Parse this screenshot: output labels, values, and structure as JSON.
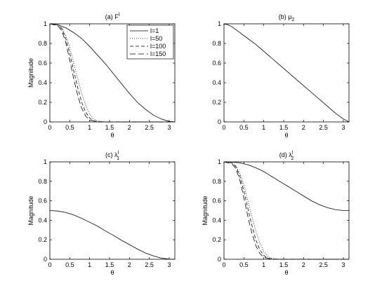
{
  "chart_data": [
    {
      "type": "line",
      "title": "(a) F",
      "title_sup": "l",
      "xlabel": "θ",
      "ylabel": "Magnitude",
      "xlim": [
        0,
        3.1416
      ],
      "ylim": [
        0,
        1
      ],
      "xticks": [
        0,
        0.5,
        1,
        1.5,
        2,
        2.5,
        3
      ],
      "xtick_labels": [
        "0",
        "0.5",
        "1",
        "1.5",
        "2",
        "2.5",
        "3"
      ],
      "yticks": [
        0,
        0.2,
        0.4,
        0.6,
        0.8,
        1
      ],
      "ytick_labels": [
        "0",
        "0.2",
        "0.4",
        "0.6",
        "0.8",
        "1"
      ],
      "legend": "top-right",
      "series": [
        {
          "name": "l=1",
          "style": "solid",
          "x": [
            0,
            0.2,
            0.4,
            0.6,
            0.8,
            1.0,
            1.2,
            1.4,
            1.6,
            1.8,
            2.0,
            2.2,
            2.4,
            2.6,
            2.8,
            3.0,
            3.1416
          ],
          "y": [
            1,
            0.99,
            0.96,
            0.91,
            0.85,
            0.77,
            0.68,
            0.59,
            0.49,
            0.39,
            0.29,
            0.2,
            0.13,
            0.07,
            0.03,
            0.005,
            0
          ]
        },
        {
          "name": "l=50",
          "style": "dotted",
          "x": [
            0,
            0.2,
            0.3,
            0.4,
            0.5,
            0.6,
            0.7,
            0.8,
            0.9,
            1.0,
            1.1,
            1.2,
            1.4,
            3.1416
          ],
          "y": [
            1,
            0.99,
            0.96,
            0.88,
            0.76,
            0.6,
            0.44,
            0.29,
            0.17,
            0.08,
            0.03,
            0.01,
            0,
            0
          ]
        },
        {
          "name": "l=100",
          "style": "dashed",
          "x": [
            0,
            0.2,
            0.3,
            0.4,
            0.5,
            0.6,
            0.7,
            0.8,
            0.9,
            1.0,
            1.1,
            1.3,
            3.1416
          ],
          "y": [
            1,
            0.99,
            0.95,
            0.85,
            0.7,
            0.52,
            0.35,
            0.2,
            0.1,
            0.04,
            0.01,
            0,
            0
          ]
        },
        {
          "name": "l=150",
          "style": "longdash",
          "x": [
            0,
            0.2,
            0.3,
            0.4,
            0.5,
            0.6,
            0.7,
            0.8,
            0.9,
            1.0,
            1.2,
            3.1416
          ],
          "y": [
            1,
            0.98,
            0.93,
            0.81,
            0.63,
            0.44,
            0.27,
            0.14,
            0.06,
            0.02,
            0,
            0
          ]
        }
      ]
    },
    {
      "type": "line",
      "title": "(b) μ",
      "title_sub": "2",
      "xlabel": "θ",
      "ylabel": "",
      "xlim": [
        0,
        3.1416
      ],
      "ylim": [
        0,
        1
      ],
      "xticks": [
        0,
        0.5,
        1,
        1.5,
        2,
        2.5,
        3
      ],
      "xtick_labels": [
        "0",
        "0.5",
        "1",
        "1.5",
        "2",
        "2.5",
        "3"
      ],
      "yticks": [
        0,
        0.2,
        0.4,
        0.6,
        0.8,
        1
      ],
      "ytick_labels": [
        "0",
        "0.2",
        "0.4",
        "0.6",
        "0.8",
        "1"
      ],
      "series": [
        {
          "style": "solid",
          "x": [
            0,
            0.1,
            0.2,
            0.4,
            0.6,
            0.8,
            1.0,
            1.2,
            1.4,
            1.6,
            1.8,
            2.0,
            2.2,
            2.4,
            2.6,
            2.8,
            3.0,
            3.1416
          ],
          "y": [
            1,
            0.99,
            0.97,
            0.91,
            0.85,
            0.79,
            0.72,
            0.65,
            0.58,
            0.51,
            0.44,
            0.37,
            0.3,
            0.23,
            0.16,
            0.09,
            0.03,
            0
          ]
        }
      ]
    },
    {
      "type": "line",
      "title": "(c) λ",
      "title_sup": "l",
      "title_sub": "1",
      "xlabel": "θ",
      "ylabel": "Magnitude",
      "xlim": [
        0,
        3.1416
      ],
      "ylim": [
        0,
        1
      ],
      "xticks": [
        0,
        0.5,
        1,
        1.5,
        2,
        2.5,
        3
      ],
      "xtick_labels": [
        "0",
        "0.5",
        "1",
        "1.5",
        "2",
        "2.5",
        "3"
      ],
      "yticks": [
        0,
        0.2,
        0.4,
        0.6,
        0.8,
        1
      ],
      "ytick_labels": [
        "0",
        "0.2",
        "0.4",
        "0.6",
        "0.8",
        "1"
      ],
      "series": [
        {
          "style": "solid",
          "x": [
            0,
            0.2,
            0.4,
            0.6,
            0.8,
            1.0,
            1.2,
            1.4,
            1.6,
            1.8,
            2.0,
            2.2,
            2.4,
            2.6,
            2.8,
            3.0,
            3.1416
          ],
          "y": [
            0.5,
            0.495,
            0.48,
            0.455,
            0.42,
            0.38,
            0.34,
            0.29,
            0.245,
            0.195,
            0.15,
            0.105,
            0.065,
            0.035,
            0.012,
            0.002,
            0
          ]
        }
      ]
    },
    {
      "type": "line",
      "title": "(d) λ",
      "title_sup": "l",
      "title_sub": "2",
      "xlabel": "θ",
      "ylabel": "Magnitude",
      "xlim": [
        0,
        3.1416
      ],
      "ylim": [
        0,
        1
      ],
      "xticks": [
        0,
        0.5,
        1,
        1.5,
        2,
        2.5,
        3
      ],
      "xtick_labels": [
        "0",
        "0.5",
        "1",
        "1.5",
        "2",
        "2.5",
        "3"
      ],
      "yticks": [
        0,
        0.2,
        0.4,
        0.6,
        0.8,
        1
      ],
      "ytick_labels": [
        "0",
        "0.2",
        "0.4",
        "0.6",
        "0.8",
        "1"
      ],
      "series": [
        {
          "style": "solid",
          "x": [
            0,
            0.2,
            0.4,
            0.6,
            0.8,
            1.0,
            1.2,
            1.4,
            1.6,
            1.8,
            2.0,
            2.2,
            2.4,
            2.6,
            2.8,
            3.0,
            3.1416
          ],
          "y": [
            1,
            0.998,
            0.99,
            0.97,
            0.94,
            0.9,
            0.85,
            0.8,
            0.75,
            0.7,
            0.65,
            0.6,
            0.56,
            0.53,
            0.51,
            0.5,
            0.5
          ]
        },
        {
          "style": "dotted",
          "x": [
            0,
            0.2,
            0.3,
            0.4,
            0.5,
            0.6,
            0.7,
            0.8,
            0.9,
            1.0,
            1.1,
            1.2,
            1.4,
            3.1416
          ],
          "y": [
            1,
            0.99,
            0.96,
            0.88,
            0.76,
            0.6,
            0.44,
            0.29,
            0.17,
            0.08,
            0.03,
            0.01,
            0,
            0
          ]
        },
        {
          "style": "dashed",
          "x": [
            0,
            0.2,
            0.3,
            0.4,
            0.5,
            0.6,
            0.7,
            0.8,
            0.9,
            1.0,
            1.1,
            1.3,
            3.1416
          ],
          "y": [
            1,
            0.99,
            0.95,
            0.85,
            0.7,
            0.52,
            0.35,
            0.2,
            0.1,
            0.04,
            0.01,
            0,
            0
          ]
        },
        {
          "style": "longdash",
          "x": [
            0,
            0.2,
            0.3,
            0.4,
            0.5,
            0.6,
            0.7,
            0.8,
            0.9,
            1.0,
            1.2,
            3.1416
          ],
          "y": [
            1,
            0.98,
            0.93,
            0.81,
            0.63,
            0.44,
            0.27,
            0.14,
            0.06,
            0.02,
            0,
            0
          ]
        }
      ]
    }
  ]
}
